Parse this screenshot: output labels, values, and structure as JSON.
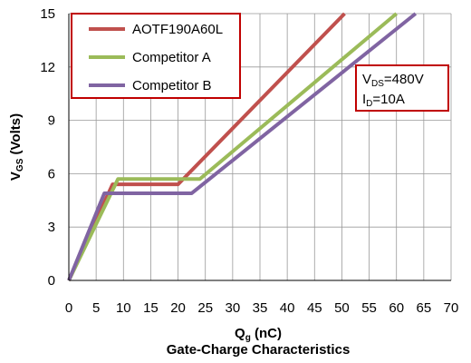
{
  "chart_data": {
    "type": "line",
    "title": "Gate-Charge Characteristics",
    "xlabel": {
      "main": "Q",
      "sub": "g",
      "unit": " (nC)"
    },
    "ylabel": {
      "main": "V",
      "sub": "GS",
      "unit": " (Volts)"
    },
    "xlim": [
      0,
      70
    ],
    "ylim": [
      0,
      15
    ],
    "xticks": [
      0,
      5,
      10,
      15,
      20,
      25,
      30,
      35,
      40,
      45,
      50,
      55,
      60,
      65,
      70
    ],
    "yticks": [
      0,
      3,
      6,
      9,
      12,
      15
    ],
    "grid": true,
    "legend_position": "top-left",
    "series": [
      {
        "name": "AOTF190A60L",
        "color": "#c0504d",
        "points": [
          [
            0,
            0
          ],
          [
            8,
            5.4
          ],
          [
            20,
            5.4
          ],
          [
            50.5,
            15
          ]
        ]
      },
      {
        "name": "Competitor A",
        "color": "#9bbb59",
        "points": [
          [
            0,
            0
          ],
          [
            9,
            5.7
          ],
          [
            24,
            5.7
          ],
          [
            60,
            15
          ]
        ]
      },
      {
        "name": "Competitor B",
        "color": "#8064a2",
        "points": [
          [
            0,
            0
          ],
          [
            6.5,
            4.9
          ],
          [
            22.5,
            4.9
          ],
          [
            63.5,
            15
          ]
        ]
      }
    ],
    "conditions": {
      "line1": {
        "main": "V",
        "sub": "DS",
        "value": "=480V"
      },
      "line2": {
        "main": "I",
        "sub": "D",
        "value": "=10A"
      }
    }
  }
}
